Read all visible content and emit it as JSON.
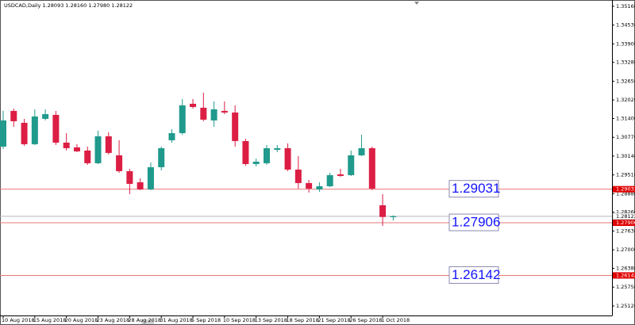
{
  "chart_data": {
    "type": "candlestick",
    "title": "USDCAD,Daily  1.28093 1.28160 1.27980 1.28122",
    "categories": [
      "10 Aug 2018",
      null,
      null,
      "15 Aug 2018",
      null,
      null,
      "20 Aug 2018",
      null,
      null,
      "23 Aug 2018",
      null,
      null,
      "28 Aug 2018",
      null,
      null,
      "31 Aug 2018",
      null,
      null,
      "5 Sep 2018",
      null,
      null,
      "10 Sep 2018",
      null,
      null,
      "13 Sep 2018",
      null,
      null,
      "18 Sep 2018",
      null,
      null,
      "21 Sep 2018",
      null,
      null,
      "26 Sep 2018",
      null,
      null,
      "1 Oct 2018",
      null
    ],
    "open": [
      1.30458,
      1.31654,
      1.31255,
      1.30538,
      1.31388,
      1.31521,
      1.30591,
      1.30432,
      1.30326,
      1.29901,
      1.30804,
      1.30166,
      1.29635,
      1.29263,
      1.29024,
      1.29768,
      1.30671,
      1.3091,
      1.31893,
      1.3176,
      1.31335,
      1.31654,
      1.316,
      1.30644,
      1.29874,
      1.29901,
      1.30352,
      1.30405,
      1.29688,
      1.29237,
      1.29024,
      1.2913,
      1.29529,
      1.29502,
      1.30166,
      1.30405,
      1.28493,
      1.28093
    ],
    "high": [
      1.31654,
      1.31733,
      1.31388,
      1.31707,
      1.31707,
      1.31654,
      1.3091,
      1.30538,
      1.30458,
      1.3099,
      1.30937,
      1.30671,
      1.29715,
      1.29396,
      1.29927,
      1.30458,
      1.31043,
      1.32052,
      1.32052,
      1.32265,
      1.31972,
      1.31972,
      1.3184,
      1.30722,
      1.3006,
      1.30512,
      1.30512,
      1.30565,
      1.3014,
      1.29343,
      1.29263,
      1.29582,
      1.29715,
      1.30326,
      1.30857,
      1.30458,
      1.28865,
      1.2816
    ],
    "low": [
      1.30379,
      1.31122,
      1.30485,
      1.30512,
      1.31335,
      1.30512,
      1.30326,
      1.30273,
      1.29848,
      1.29874,
      1.30193,
      1.29582,
      1.28865,
      1.28998,
      1.28998,
      1.29662,
      1.30591,
      1.30857,
      1.31733,
      1.31308,
      1.31122,
      1.31547,
      1.30458,
      1.29821,
      1.29794,
      1.29848,
      1.30273,
      1.29635,
      1.29051,
      1.28918,
      1.28945,
      1.29104,
      1.29449,
      1.29476,
      1.3014,
      1.28998,
      1.27803,
      1.2798
    ],
    "close": [
      1.31335,
      1.31308,
      1.30538,
      1.31468,
      1.31547,
      1.30591,
      1.30405,
      1.30299,
      1.29901,
      1.30804,
      1.30246,
      1.29635,
      1.2921,
      1.29024,
      1.29768,
      1.30405,
      1.3091,
      1.3184,
      1.31786,
      1.31361,
      1.31707,
      1.316,
      1.30644,
      1.29874,
      1.29954,
      1.30405,
      1.30405,
      1.29688,
      1.29237,
      1.29051,
      1.2913,
      1.29502,
      1.29476,
      1.30166,
      1.30405,
      1.29051,
      1.281,
      1.28122
    ],
    "up_color": "#1f9a8c",
    "down_color": "#dc1e44",
    "levels": [
      1.29031,
      1.27906,
      1.26142
    ],
    "level_color": "#e9797b",
    "ylim": [
      1.248,
      1.3537
    ],
    "yticks": [
      {
        "value": 1.3516,
        "label": "1.35160"
      },
      {
        "value": 1.3453,
        "label": "1.34530"
      },
      {
        "value": 1.339,
        "label": "1.33900"
      },
      {
        "value": 1.3328,
        "label": "1.33280"
      },
      {
        "value": 1.3265,
        "label": "1.32650"
      },
      {
        "value": 1.3202,
        "label": "1.32020"
      },
      {
        "value": 1.314,
        "label": "1.31400"
      },
      {
        "value": 1.3077,
        "label": "1.30770"
      },
      {
        "value": 1.3014,
        "label": "1.30140"
      },
      {
        "value": 1.2951,
        "label": "1.29510"
      },
      {
        "value": 1.2888,
        "label": "1.28880"
      },
      {
        "value": 1.2826,
        "label": "1.28260"
      },
      {
        "value": 1.2763,
        "label": "1.27630"
      },
      {
        "value": 1.27,
        "label": "1.27000"
      },
      {
        "value": 1.2638,
        "label": "1.26380"
      },
      {
        "value": 1.2575,
        "label": "1.25750"
      },
      {
        "value": 1.2512,
        "label": "1.25120"
      }
    ],
    "grid": false
  }
}
